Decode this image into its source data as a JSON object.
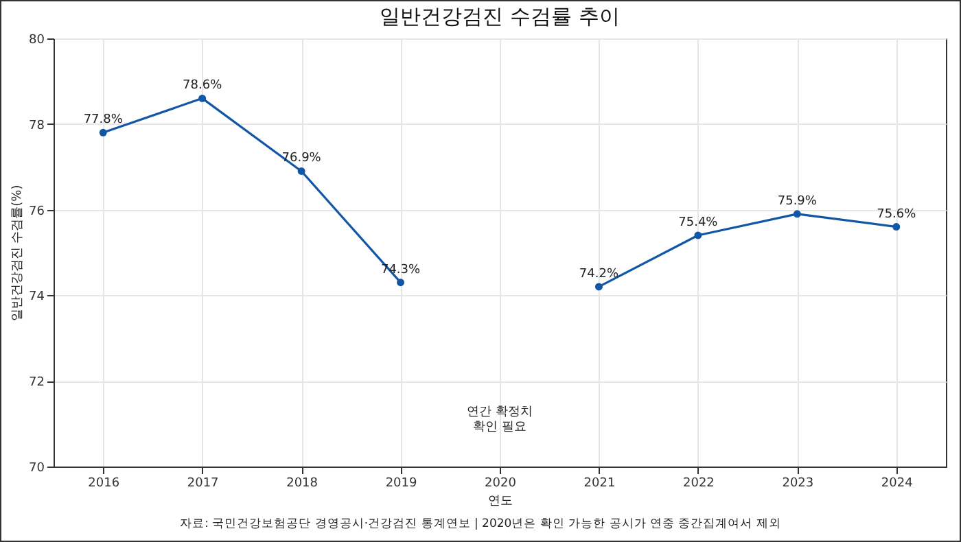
{
  "chart_data": {
    "type": "line",
    "title": "일반건강검진 수검률 추이",
    "xlabel": "연도",
    "ylabel": "일반건강검진 수검률(%)",
    "categories": [
      "2016",
      "2017",
      "2018",
      "2019",
      "2020",
      "2021",
      "2022",
      "2023",
      "2024"
    ],
    "series": [
      {
        "color": "#1257a6",
        "values": [
          77.8,
          78.6,
          76.9,
          74.3,
          null,
          74.2,
          75.4,
          75.9,
          75.6
        ],
        "value_labels": [
          "77.8%",
          "78.6%",
          "76.9%",
          "74.3%",
          null,
          "74.2%",
          "75.4%",
          "75.9%",
          "75.6%"
        ]
      }
    ],
    "ylim": [
      70,
      80
    ],
    "yticks": [
      70,
      72,
      74,
      76,
      78,
      80
    ],
    "grid": true,
    "marker": "circle",
    "line_style": "solid",
    "annotations": [
      "연간 확정치\n확인 필요",
      "자료: 국민건강보험공단 경영공시·건강검진 통계연보 | 2020년은 확인 가능한 공시가 연중 중간집계여서 제외"
    ]
  }
}
